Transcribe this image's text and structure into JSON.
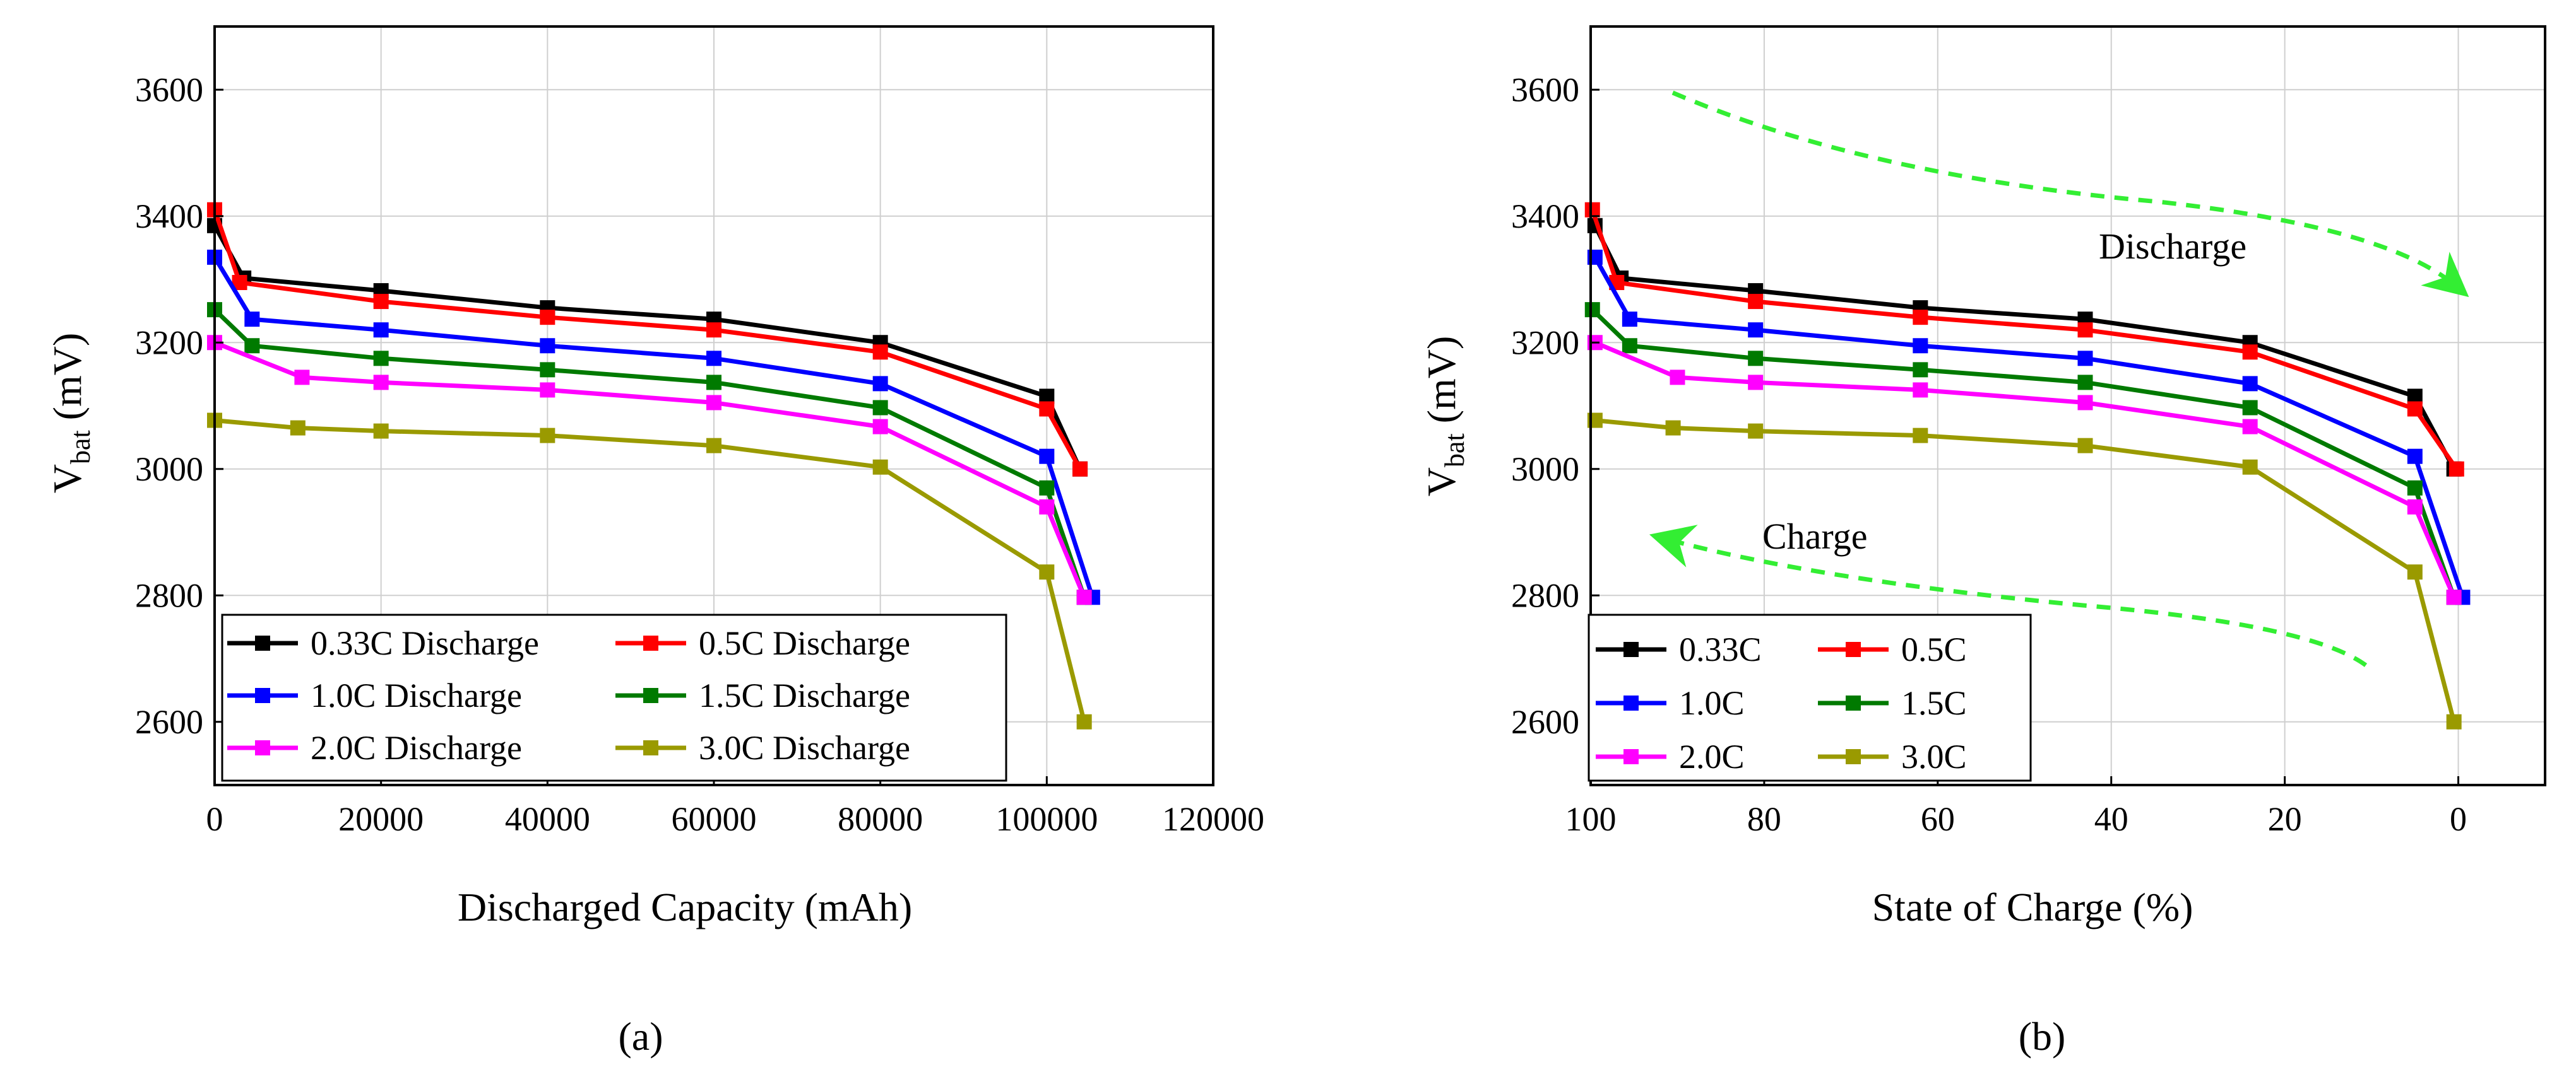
{
  "panels": [
    {
      "caption": "(a)",
      "x_ticks": [
        "0",
        "20000",
        "40000",
        "60000",
        "80000",
        "100000",
        "120000"
      ],
      "y_ticks": [
        "2600",
        "2800",
        "3000",
        "3200",
        "3400",
        "3600"
      ]
    },
    {
      "caption": "(b)",
      "x_ticks": [
        "100",
        "80",
        "60",
        "40",
        "20",
        "0"
      ],
      "y_ticks": [
        "2600",
        "2800",
        "3000",
        "3200",
        "3400",
        "3600"
      ],
      "annotations": [
        "Discharge",
        "Charge"
      ]
    }
  ],
  "colors": {
    "0.33C": "#000000",
    "0.5C": "#ff0000",
    "1.0C": "#0000ff",
    "1.5C": "#007a00",
    "2.0C": "#ff00ff",
    "3.0C": "#9a9a00",
    "arrow": "#33ee33"
  },
  "chart_data": [
    {
      "type": "line",
      "title": "",
      "xlabel": "Discharged Capacity (mAh)",
      "ylabel": "V_bat (mV)",
      "ylabel_main": "V",
      "ylabel_sub": "bat",
      "ylabel_unit": "(mV)",
      "xlim": [
        0,
        120000
      ],
      "ylim": [
        2500,
        3700
      ],
      "grid": true,
      "legend_position": "bottom-left",
      "series": [
        {
          "name": "0.33C Discharge",
          "x": [
            0,
            3500,
            20000,
            40000,
            60000,
            80000,
            100000,
            104000
          ],
          "y": [
            3385,
            3302,
            3282,
            3255,
            3237,
            3200,
            3115,
            3000
          ]
        },
        {
          "name": "0.5C Discharge",
          "x": [
            0,
            3000,
            20000,
            40000,
            60000,
            80000,
            100000,
            104000
          ],
          "y": [
            3410,
            3295,
            3265,
            3240,
            3220,
            3185,
            3095,
            3000
          ]
        },
        {
          "name": "1.0C Discharge",
          "x": [
            0,
            4500,
            20000,
            40000,
            60000,
            80000,
            100000,
            105500
          ],
          "y": [
            3335,
            3237,
            3220,
            3195,
            3175,
            3135,
            3020,
            2797
          ]
        },
        {
          "name": "1.5C Discharge",
          "x": [
            0,
            4500,
            20000,
            40000,
            60000,
            80000,
            100000,
            104500
          ],
          "y": [
            3252,
            3195,
            3175,
            3157,
            3137,
            3097,
            2970,
            2797
          ]
        },
        {
          "name": "2.0C Discharge",
          "x": [
            0,
            10500,
            20000,
            40000,
            60000,
            80000,
            100000,
            104500
          ],
          "y": [
            3200,
            3145,
            3137,
            3125,
            3105,
            3067,
            2940,
            2797
          ]
        },
        {
          "name": "3.0C Discharge",
          "x": [
            0,
            10000,
            20000,
            40000,
            60000,
            80000,
            100000,
            104500
          ],
          "y": [
            3077,
            3065,
            3060,
            3053,
            3037,
            3003,
            2837,
            2600
          ]
        }
      ]
    },
    {
      "type": "line",
      "title": "",
      "xlabel": "State of Charge (%)",
      "ylabel": "V_bat (mV)",
      "ylabel_main": "V",
      "ylabel_sub": "bat",
      "ylabel_unit": "(mV)",
      "xlim": [
        100,
        -10
      ],
      "ylim": [
        2500,
        3700
      ],
      "grid": true,
      "legend_position": "bottom-left",
      "series": [
        {
          "name": "0.33C",
          "x": [
            99.5,
            96.5,
            81,
            62,
            43,
            24,
            5,
            0.5
          ],
          "y": [
            3385,
            3302,
            3282,
            3255,
            3237,
            3200,
            3115,
            3000
          ]
        },
        {
          "name": "0.5C",
          "x": [
            99.8,
            97,
            81,
            62,
            43,
            24,
            5,
            0.2
          ],
          "y": [
            3410,
            3295,
            3265,
            3240,
            3220,
            3185,
            3095,
            3000
          ]
        },
        {
          "name": "1.0C",
          "x": [
            99.5,
            95.5,
            81,
            62,
            43,
            24,
            5,
            -0.5
          ],
          "y": [
            3335,
            3237,
            3220,
            3195,
            3175,
            3135,
            3020,
            2797
          ]
        },
        {
          "name": "1.5C",
          "x": [
            99.8,
            95.5,
            81,
            62,
            43,
            24,
            5,
            0.5
          ],
          "y": [
            3252,
            3195,
            3175,
            3157,
            3137,
            3097,
            2970,
            2797
          ]
        },
        {
          "name": "2.0C",
          "x": [
            99.5,
            90,
            81,
            62,
            43,
            24,
            5,
            0.5
          ],
          "y": [
            3200,
            3145,
            3137,
            3125,
            3105,
            3067,
            2940,
            2797
          ]
        },
        {
          "name": "3.0C",
          "x": [
            99.5,
            90.5,
            81,
            62,
            43,
            24,
            5,
            0.5
          ],
          "y": [
            3077,
            3065,
            3060,
            3053,
            3037,
            3003,
            2837,
            2600
          ]
        }
      ]
    }
  ]
}
